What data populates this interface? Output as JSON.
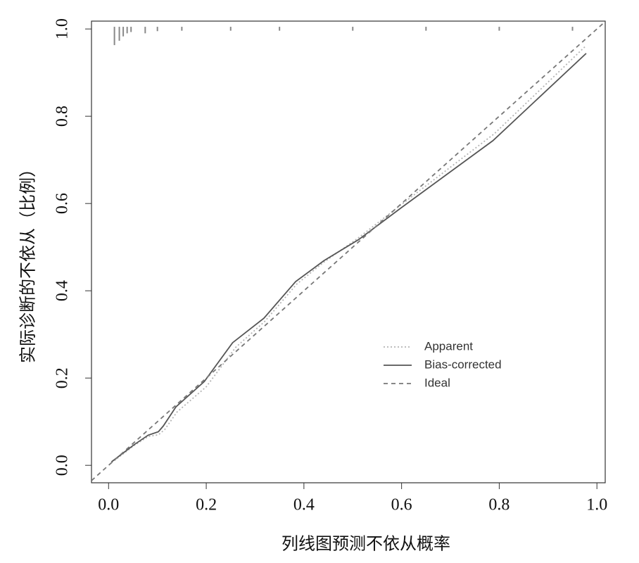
{
  "chart_data": {
    "type": "line",
    "xlabel": "列线图预测不依从概率",
    "ylabel": "实际诊断的不依从（比例）",
    "xlim": [
      -0.035,
      1.017
    ],
    "ylim": [
      -0.04,
      1.018
    ],
    "xticks": [
      {
        "value": 0,
        "label": "0.0"
      },
      {
        "value": 0.2,
        "label": "0.2"
      },
      {
        "value": 0.4,
        "label": "0.4"
      },
      {
        "value": 0.6,
        "label": "0.6"
      },
      {
        "value": 0.8,
        "label": "0.8"
      },
      {
        "value": 1,
        "label": "1.0"
      }
    ],
    "yticks": [
      {
        "value": 0,
        "label": "0.0"
      },
      {
        "value": 0.2,
        "label": "0.2"
      },
      {
        "value": 0.4,
        "label": "0.4"
      },
      {
        "value": 0.6,
        "label": "0.6"
      },
      {
        "value": 0.8,
        "label": "0.8"
      },
      {
        "value": 1,
        "label": "1.0"
      }
    ],
    "legend": "right",
    "series": [
      {
        "name": "Apparent",
        "color": "#b4b4b4",
        "style": "dotted",
        "x": [
          0.006,
          0.052,
          0.081,
          0.102,
          0.115,
          0.14,
          0.2,
          0.26,
          0.32,
          0.385,
          0.44,
          0.51,
          0.6,
          0.79,
          0.978
        ],
        "values": [
          0.006,
          0.045,
          0.066,
          0.07,
          0.082,
          0.122,
          0.18,
          0.27,
          0.33,
          0.415,
          0.465,
          0.52,
          0.598,
          0.76,
          0.962
        ]
      },
      {
        "name": "Bias-corrected",
        "color": "#555555",
        "style": "solid",
        "x": [
          0.006,
          0.052,
          0.081,
          0.102,
          0.112,
          0.138,
          0.196,
          0.254,
          0.318,
          0.383,
          0.441,
          0.513,
          0.599,
          0.787,
          0.978
        ],
        "values": [
          0.008,
          0.047,
          0.069,
          0.077,
          0.09,
          0.134,
          0.192,
          0.281,
          0.337,
          0.421,
          0.469,
          0.518,
          0.59,
          0.744,
          0.944
        ]
      },
      {
        "name": "Ideal",
        "color": "#777777",
        "style": "dashed",
        "x": [
          -0.035,
          1.017
        ],
        "values": [
          -0.035,
          1.017
        ]
      }
    ],
    "rug": {
      "color": "#888888",
      "x": [
        0.012,
        0.022,
        0.03,
        0.038,
        0.046,
        0.075,
        0.1,
        0.15,
        0.25,
        0.35,
        0.5,
        0.65,
        0.8,
        0.95
      ],
      "values": [
        0.963,
        0.973,
        0.983,
        0.99,
        0.993,
        0.99,
        0.995,
        0.996,
        0.996,
        0.996,
        0.996,
        0.996,
        0.996,
        0.996
      ]
    }
  }
}
